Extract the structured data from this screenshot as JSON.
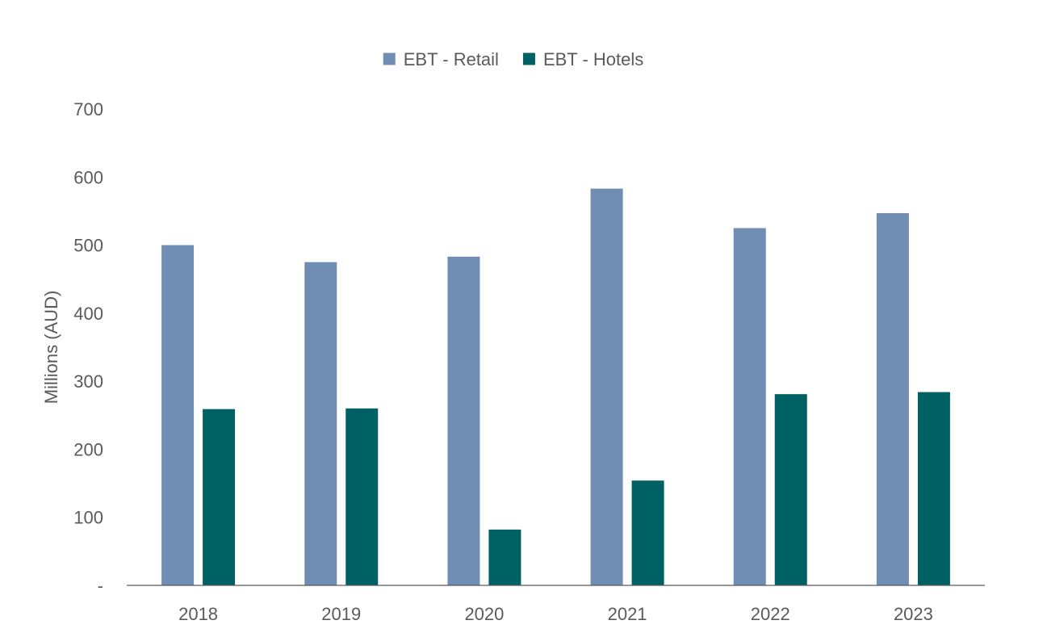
{
  "chart_data": {
    "type": "bar",
    "title": "",
    "xlabel": "",
    "ylabel": "Millions (AUD)",
    "ylim": [
      0,
      700
    ],
    "yticks": [
      0,
      100,
      200,
      300,
      400,
      500,
      600,
      700
    ],
    "ytick_labels": [
      "-",
      "100",
      "200",
      "300",
      "400",
      "500",
      "600",
      "700"
    ],
    "grid": false,
    "legend_position": "top-center",
    "categories": [
      "2018",
      "2019",
      "2020",
      "2021",
      "2022",
      "2023"
    ],
    "series": [
      {
        "name": "EBT - Retail",
        "color": "#708db3",
        "values": [
          500,
          475,
          483,
          583,
          525,
          547
        ]
      },
      {
        "name": "EBT - Hotels",
        "color": "#006164",
        "values": [
          259,
          260,
          82,
          154,
          281,
          284
        ]
      }
    ]
  }
}
